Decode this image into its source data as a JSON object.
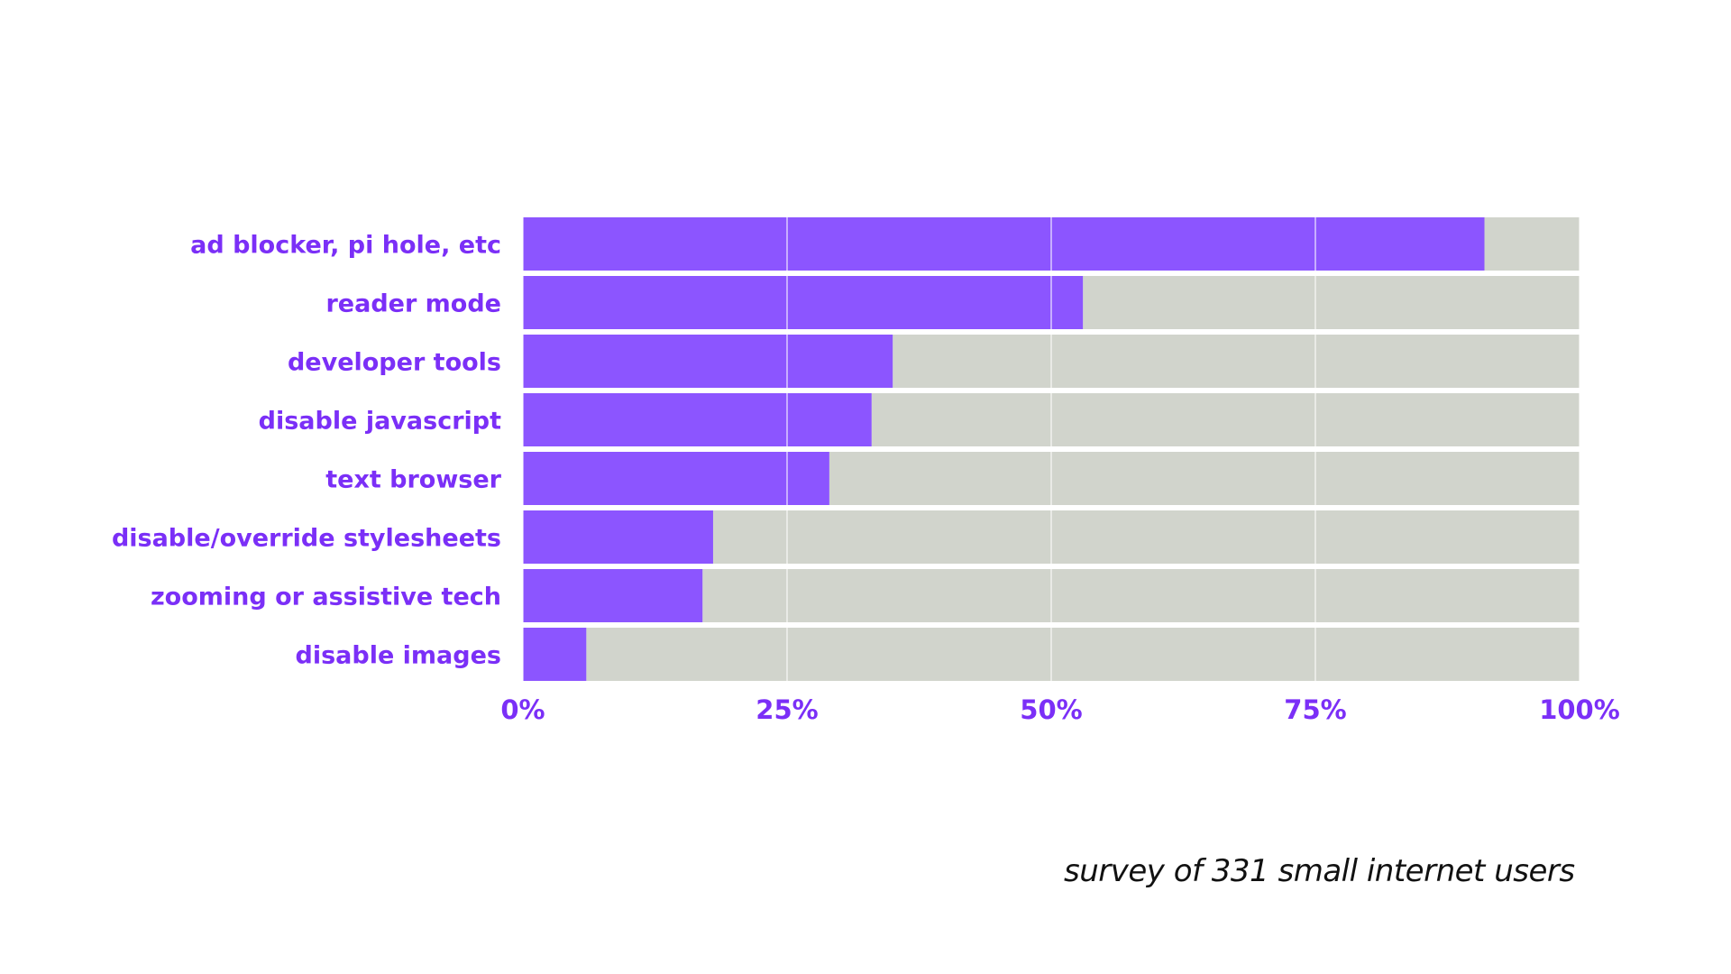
{
  "chart_data": {
    "type": "bar",
    "orientation": "horizontal",
    "stacked_to_100": true,
    "categories": [
      "ad blocker, pi hole, etc",
      "reader mode",
      "developer tools",
      "disable javascript",
      "text browser",
      "disable/override stylesheets",
      "zooming or assistive tech",
      "disable images"
    ],
    "values": [
      91,
      53,
      35,
      33,
      29,
      18,
      17,
      6
    ],
    "unit": "%",
    "xlim": [
      0,
      100
    ],
    "x_ticks": [
      "0%",
      "25%",
      "50%",
      "75%",
      "100%"
    ],
    "grid": true,
    "legend": "none",
    "caption": "survey of 331 small internet users",
    "colors": {
      "bar": "#8c55ff",
      "remainder": "#d1d4cc",
      "label": "#7b2ff7",
      "grid": "#ffffff"
    }
  }
}
